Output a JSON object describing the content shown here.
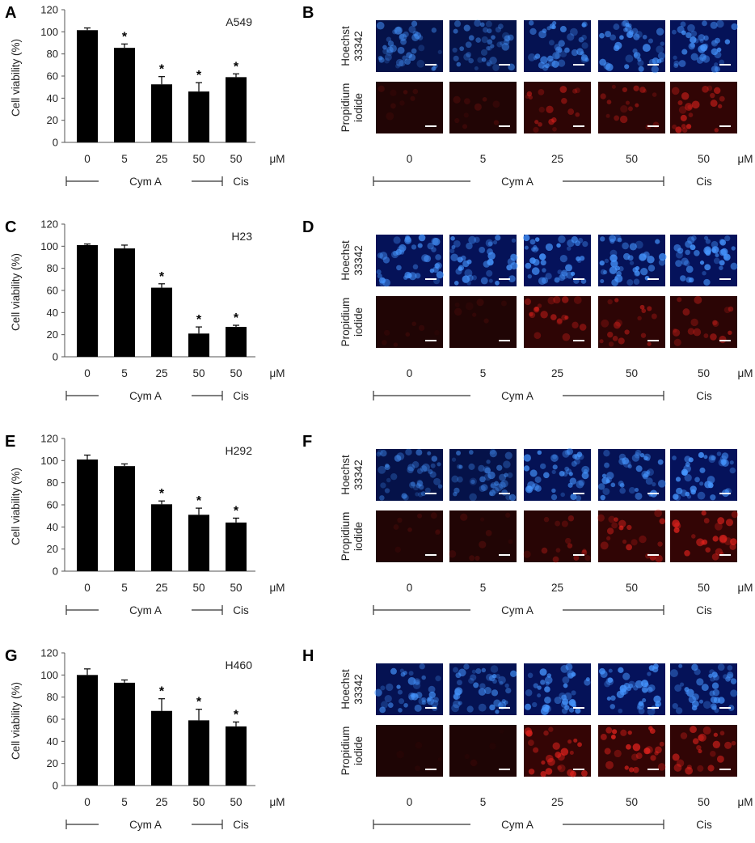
{
  "chart_data": [
    {
      "panel": "A",
      "type": "bar",
      "cell_line": "A549",
      "ylabel": "Cell viability (%)",
      "ylim": [
        0,
        120
      ],
      "yticks": [
        0,
        20,
        40,
        60,
        80,
        100,
        120
      ],
      "categories": [
        "0",
        "5",
        "25",
        "50",
        "50"
      ],
      "unit": "μM",
      "values": [
        101.5,
        85.5,
        52.5,
        46,
        59
      ],
      "errors": [
        2,
        3.5,
        7,
        8,
        3
      ],
      "significant": [
        false,
        true,
        true,
        true,
        true
      ],
      "groups": [
        {
          "label": "Cym A"
        },
        {
          "label": "Cis"
        }
      ]
    },
    {
      "panel": "C",
      "type": "bar",
      "cell_line": "H23",
      "ylabel": "Cell viability (%)",
      "ylim": [
        0,
        120
      ],
      "yticks": [
        0,
        20,
        40,
        60,
        80,
        100,
        120
      ],
      "categories": [
        "0",
        "5",
        "25",
        "50",
        "50"
      ],
      "unit": "μM",
      "values": [
        101,
        98,
        62.5,
        21,
        27
      ],
      "errors": [
        1,
        3,
        3.5,
        6,
        1.5
      ],
      "significant": [
        false,
        false,
        true,
        true,
        true
      ],
      "groups": [
        {
          "label": "Cym A"
        },
        {
          "label": "Cis"
        }
      ]
    },
    {
      "panel": "E",
      "type": "bar",
      "cell_line": "H292",
      "ylabel": "Cell viability (%)",
      "ylim": [
        0,
        120
      ],
      "yticks": [
        0,
        20,
        40,
        60,
        80,
        100,
        120
      ],
      "categories": [
        "0",
        "5",
        "25",
        "50",
        "50"
      ],
      "unit": "μM",
      "values": [
        101,
        95,
        60.5,
        51,
        44
      ],
      "errors": [
        4,
        2,
        3,
        6,
        4
      ],
      "significant": [
        false,
        false,
        true,
        true,
        true
      ],
      "groups": [
        {
          "label": "Cym A"
        },
        {
          "label": "Cis"
        }
      ]
    },
    {
      "panel": "G",
      "type": "bar",
      "cell_line": "H460",
      "ylabel": "Cell viability (%)",
      "ylim": [
        0,
        120
      ],
      "yticks": [
        0,
        20,
        40,
        60,
        80,
        100,
        120
      ],
      "categories": [
        "0",
        "5",
        "25",
        "50",
        "50"
      ],
      "unit": "μM",
      "values": [
        100,
        93,
        67.5,
        59,
        53.5
      ],
      "errors": [
        5.5,
        2.5,
        11,
        10,
        4
      ],
      "significant": [
        false,
        false,
        true,
        true,
        true
      ],
      "groups": [
        {
          "label": "Cym A"
        },
        {
          "label": "Cis"
        }
      ]
    }
  ],
  "micrographs": [
    {
      "panel": "B",
      "rows": [
        "Hoechst 33342",
        "Propidium iodide"
      ],
      "columns": [
        "0",
        "5",
        "25",
        "50",
        "50"
      ],
      "unit": "μM",
      "groups": [
        {
          "label": "Cym A"
        },
        {
          "label": "Cis"
        }
      ],
      "blue_brightness": [
        0.55,
        0.55,
        0.7,
        0.75,
        0.8
      ],
      "red_brightness": [
        0.15,
        0.18,
        0.55,
        0.5,
        0.7
      ]
    },
    {
      "panel": "D",
      "rows": [
        "Hoechst 33342",
        "Propidium iodide"
      ],
      "columns": [
        "0",
        "5",
        "25",
        "50",
        "50"
      ],
      "unit": "μM",
      "groups": [
        {
          "label": "Cym A"
        },
        {
          "label": "Cis"
        }
      ],
      "blue_brightness": [
        0.8,
        0.8,
        0.85,
        0.8,
        0.85
      ],
      "red_brightness": [
        0.12,
        0.12,
        0.6,
        0.55,
        0.5
      ]
    },
    {
      "panel": "F",
      "rows": [
        "Hoechst 33342",
        "Propidium iodide"
      ],
      "columns": [
        "0",
        "5",
        "25",
        "50",
        "50"
      ],
      "unit": "μM",
      "groups": [
        {
          "label": "Cym A"
        },
        {
          "label": "Cis"
        }
      ],
      "blue_brightness": [
        0.55,
        0.55,
        0.75,
        0.75,
        0.85
      ],
      "red_brightness": [
        0.15,
        0.18,
        0.4,
        0.65,
        0.75
      ]
    },
    {
      "panel": "H",
      "rows": [
        "Hoechst 33342",
        "Propidium iodide"
      ],
      "columns": [
        "0",
        "5",
        "25",
        "50",
        "50"
      ],
      "unit": "μM",
      "groups": [
        {
          "label": "Cym A"
        },
        {
          "label": "Cis"
        }
      ],
      "blue_brightness": [
        0.7,
        0.7,
        0.8,
        0.85,
        0.8
      ],
      "red_brightness": [
        0.05,
        0.05,
        0.8,
        0.8,
        0.7
      ]
    }
  ],
  "colors": {
    "bar": "#000000",
    "axis": "#555555",
    "text": "#222222",
    "hoechst": "#2a78e0",
    "propidium": "#d2231b",
    "scale_bar": "#ffffff"
  }
}
